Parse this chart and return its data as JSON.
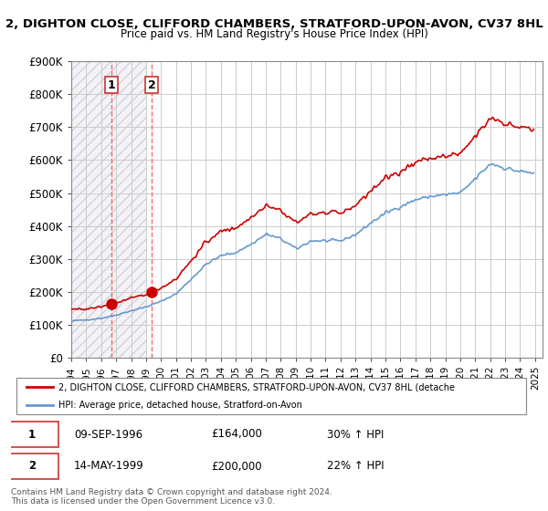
{
  "title1": "2, DIGHTON CLOSE, CLIFFORD CHAMBERS, STRATFORD-UPON-AVON, CV37 8HL",
  "title2": "Price paid vs. HM Land Registry's House Price Index (HPI)",
  "ylabel": "",
  "ylim": [
    0,
    900000
  ],
  "yticks": [
    0,
    100000,
    200000,
    300000,
    400000,
    500000,
    600000,
    700000,
    800000,
    900000
  ],
  "ytick_labels": [
    "£0",
    "£100K",
    "£200K",
    "£300K",
    "£400K",
    "£500K",
    "£600K",
    "£700K",
    "£800K",
    "£900K"
  ],
  "xlim_start": 1994.0,
  "xlim_end": 2025.5,
  "transaction1": {
    "year": 1996.69,
    "price": 164000,
    "label": "1"
  },
  "transaction2": {
    "year": 1999.37,
    "price": 200000,
    "label": "2"
  },
  "hpi_color": "#6699cc",
  "price_color": "#cc0000",
  "dashed_color": "#ff6666",
  "background_hatched_end": 1999.0,
  "legend_line1": "2, DIGHTON CLOSE, CLIFFORD CHAMBERS, STRATFORD-UPON-AVON, CV37 8HL (detache",
  "legend_line2": "HPI: Average price, detached house, Stratford-on-Avon",
  "table_rows": [
    {
      "num": "1",
      "date": "09-SEP-1996",
      "price": "£164,000",
      "change": "30% ↑ HPI"
    },
    {
      "num": "2",
      "date": "14-MAY-1999",
      "price": "£200,000",
      "change": "22% ↑ HPI"
    }
  ],
  "footer": "Contains HM Land Registry data © Crown copyright and database right 2024.\nThis data is licensed under the Open Government Licence v3.0.",
  "background_color": "#ffffff",
  "grid_color": "#cccccc"
}
